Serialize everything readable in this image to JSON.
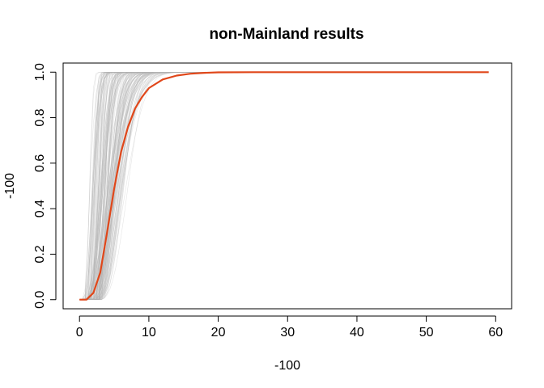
{
  "chart_data": {
    "type": "line",
    "title": "non-Mainland results",
    "xlabel": "-100",
    "ylabel": "-100",
    "xlim": [
      -2.36,
      62.3
    ],
    "ylim": [
      -0.04,
      1.04
    ],
    "x_ticks": [
      0,
      10,
      20,
      30,
      40,
      50,
      60
    ],
    "y_ticks": [
      0.0,
      0.2,
      0.4,
      0.6,
      0.8,
      1.0
    ],
    "x_tick_labels": [
      "0",
      "10",
      "20",
      "30",
      "40",
      "50",
      "60"
    ],
    "y_tick_labels": [
      "0.0",
      "0.2",
      "0.4",
      "0.6",
      "0.8",
      "1.0"
    ],
    "grid": false,
    "legend": "none",
    "series": [
      {
        "role": "mean",
        "color": "#e0471a",
        "x": [
          0,
          1,
          2,
          3,
          4,
          5,
          6,
          7,
          8,
          9,
          10,
          12,
          14,
          16,
          18,
          20,
          25,
          30,
          40,
          50,
          59
        ],
        "y": [
          0.0,
          0.0,
          0.03,
          0.12,
          0.3,
          0.49,
          0.65,
          0.76,
          0.84,
          0.89,
          0.93,
          0.968,
          0.985,
          0.993,
          0.997,
          0.999,
          1.0,
          1.0,
          1.0,
          1.0,
          1.0
        ]
      }
    ],
    "background_curves": {
      "color": "#b4b4b4",
      "count": 160,
      "x_end": 59,
      "max_y": 1.0,
      "onset_x_range": [
        0.5,
        3.0
      ],
      "scale_range": [
        0.9,
        5.0
      ]
    }
  }
}
